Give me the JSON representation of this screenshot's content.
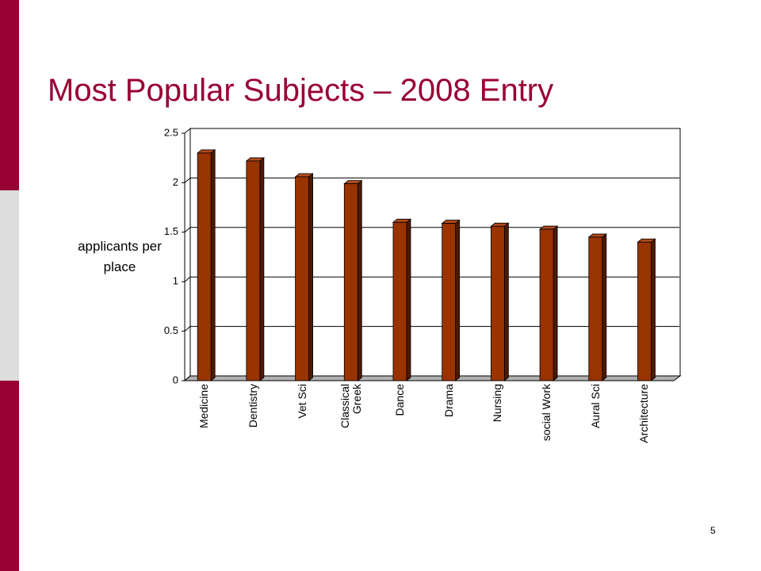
{
  "chart_data": {
    "type": "bar",
    "title": "Most Popular Subjects – 2008 Entry",
    "y_label": "applicants per place",
    "categories": [
      "Medicine",
      "Dentistry",
      "Vet Sci",
      "Classical Greek",
      "Dance",
      "Drama",
      "Nursing",
      "social Work",
      "Aural Sci",
      "Architecture"
    ],
    "values": [
      2.3,
      2.22,
      2.06,
      1.99,
      1.6,
      1.59,
      1.56,
      1.53,
      1.45,
      1.4
    ],
    "color": "#993300",
    "ylim": [
      0,
      2.5
    ],
    "yticks": [
      0,
      0.5,
      1,
      1.5,
      2,
      2.5
    ],
    "grid": true
  },
  "page_number": "5"
}
